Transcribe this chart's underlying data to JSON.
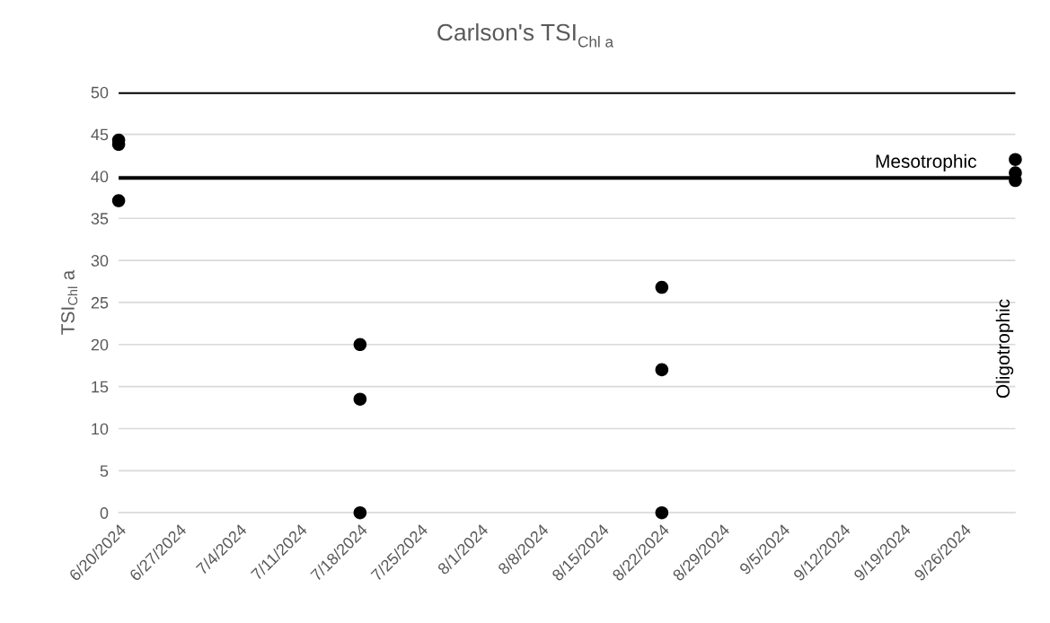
{
  "chart_data": {
    "type": "scatter",
    "title": "Carlson's TSI$_{Chl a}$",
    "ylabel": "TSI$_{Chl}$ a",
    "x": [
      "2024-06-20",
      "2024-06-20",
      "2024-06-20",
      "2024-07-18",
      "2024-07-18",
      "2024-07-18",
      "2024-08-22",
      "2024-08-22",
      "2024-08-22",
      "2024-10-02",
      "2024-10-02",
      "2024-10-02"
    ],
    "series": [
      {
        "color": "#000000",
        "values": [
          44.3,
          43.8,
          37.1,
          20.0,
          13.5,
          0,
          26.8,
          17.0,
          0,
          42.0,
          40.4,
          39.5
        ]
      }
    ],
    "xlim": [
      "2024-06-20",
      "2024-10-02"
    ],
    "xticks": [
      {
        "value": "2024-06-20",
        "label": "6/20/2024"
      },
      {
        "value": "2024-06-27",
        "label": "6/27/2024"
      },
      {
        "value": "2024-07-04",
        "label": "7/4/2024"
      },
      {
        "value": "2024-07-11",
        "label": "7/11/2024"
      },
      {
        "value": "2024-07-18",
        "label": "7/18/2024"
      },
      {
        "value": "2024-07-25",
        "label": "7/25/2024"
      },
      {
        "value": "2024-08-01",
        "label": "8/1/2024"
      },
      {
        "value": "2024-08-08",
        "label": "8/8/2024"
      },
      {
        "value": "2024-08-15",
        "label": "8/15/2024"
      },
      {
        "value": "2024-08-22",
        "label": "8/22/2024"
      },
      {
        "value": "2024-08-29",
        "label": "8/29/2024"
      },
      {
        "value": "2024-09-05",
        "label": "9/5/2024"
      },
      {
        "value": "2024-09-12",
        "label": "9/12/2024"
      },
      {
        "value": "2024-09-19",
        "label": "9/19/2024"
      },
      {
        "value": "2024-09-26",
        "label": "9/26/2024"
      }
    ],
    "ylim": [
      0,
      50
    ],
    "yticks": [
      0,
      5,
      10,
      15,
      20,
      25,
      30,
      35,
      40,
      45,
      50
    ],
    "grid": "y",
    "marker": "circle",
    "legend": false,
    "ref_lines": [
      {
        "axis": "y",
        "value": 50,
        "color": "#000000"
      },
      {
        "axis": "y",
        "value": 39.8,
        "color": "#000000"
      }
    ],
    "annotations": [
      "Mesotrophic",
      "Oligotrophic"
    ]
  }
}
